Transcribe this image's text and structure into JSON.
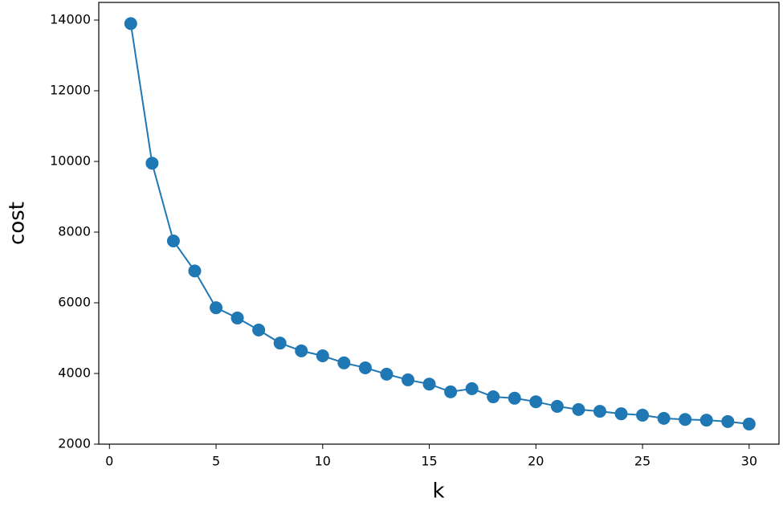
{
  "chart_data": {
    "type": "line",
    "xlabel": "k",
    "ylabel": "cost",
    "x": [
      1,
      2,
      3,
      4,
      5,
      6,
      7,
      8,
      9,
      10,
      11,
      12,
      13,
      14,
      15,
      16,
      17,
      18,
      19,
      20,
      21,
      22,
      23,
      24,
      25,
      26,
      27,
      28,
      29,
      30
    ],
    "series": [
      {
        "color": "#1f77b4",
        "marker": "circle",
        "values": [
          13900,
          9950,
          7750,
          6900,
          5860,
          5570,
          5230,
          4860,
          4640,
          4500,
          4300,
          4160,
          3980,
          3820,
          3700,
          3480,
          3570,
          3340,
          3300,
          3200,
          3070,
          2980,
          2930,
          2860,
          2820,
          2730,
          2700,
          2680,
          2640,
          2570
        ]
      }
    ],
    "xlim": [
      -0.5,
      31.4
    ],
    "ylim": [
      2000,
      14500
    ],
    "xticks": [
      0,
      5,
      10,
      15,
      20,
      25,
      30
    ],
    "yticks": [
      2000,
      4000,
      6000,
      8000,
      10000,
      12000,
      14000
    ]
  }
}
